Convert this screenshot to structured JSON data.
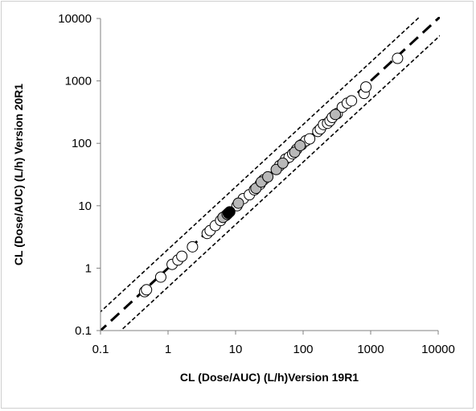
{
  "chart_data": {
    "type": "scatter",
    "title": "",
    "xlabel": "CL (Dose/AUC) (L/h)Version 19R1",
    "ylabel": "CL (Dose/AUC) (L/h) Version 20R1",
    "xscale": "log",
    "yscale": "log",
    "xlim": [
      0.1,
      10000
    ],
    "ylim": [
      0.1,
      10000
    ],
    "x_ticks": [
      "0.1",
      "1",
      "10",
      "100",
      "1000",
      "10000"
    ],
    "y_ticks": [
      "0.1",
      "1",
      "10",
      "100",
      "1000",
      "10000"
    ],
    "grid": false,
    "legend": "none",
    "reference_lines": [
      {
        "name": "",
        "description": "line of unity y = x",
        "style": "long-dash",
        "factor": 1
      },
      {
        "name": "",
        "description": "2-fold upper bound y = 2x",
        "style": "short-dash",
        "factor": 2
      },
      {
        "name": "",
        "description": "2-fold lower bound y = 0.5x",
        "style": "short-dash",
        "factor": 0.5
      }
    ],
    "series": [
      {
        "fill": "#ffffff",
        "points": [
          [
            0.45,
            0.42
          ],
          [
            0.48,
            0.45
          ],
          [
            0.78,
            0.72
          ],
          [
            1.15,
            1.15
          ],
          [
            1.4,
            1.35
          ],
          [
            1.6,
            1.55
          ],
          [
            2.3,
            2.2
          ],
          [
            3.8,
            3.6
          ],
          [
            4.2,
            4.0
          ],
          [
            5.0,
            4.8
          ],
          [
            6.0,
            5.8
          ],
          [
            7.2,
            7.0
          ],
          [
            10.5,
            10.0
          ],
          [
            13.0,
            13.0
          ],
          [
            16.0,
            15.0
          ],
          [
            19.0,
            18.0
          ],
          [
            23.0,
            22.0
          ],
          [
            26.0,
            26.0
          ],
          [
            45.0,
            44.0
          ],
          [
            55.0,
            56.0
          ],
          [
            62.0,
            60.0
          ],
          [
            70.0,
            68.0
          ],
          [
            80.0,
            80.0
          ],
          [
            95.0,
            95.0
          ],
          [
            110.0,
            110.0
          ],
          [
            125.0,
            118.0
          ],
          [
            165.0,
            155.0
          ],
          [
            180.0,
            170.0
          ],
          [
            200.0,
            200.0
          ],
          [
            230.0,
            210.0
          ],
          [
            250.0,
            230.0
          ],
          [
            270.0,
            260.0
          ],
          [
            320.0,
            300.0
          ],
          [
            380.0,
            380.0
          ],
          [
            450.0,
            440.0
          ],
          [
            520.0,
            480.0
          ],
          [
            800.0,
            630.0
          ],
          [
            850.0,
            800.0
          ],
          [
            2500.0,
            2300.0
          ]
        ]
      },
      {
        "fill": "#b8b8b8",
        "points": [
          [
            6.5,
            6.5
          ],
          [
            7.5,
            7.3
          ],
          [
            11.0,
            11.0
          ],
          [
            20.0,
            19.0
          ],
          [
            24.0,
            24.0
          ],
          [
            30.0,
            29.0
          ],
          [
            40.0,
            38.0
          ],
          [
            50.0,
            48.0
          ],
          [
            75.0,
            72.0
          ],
          [
            90.0,
            92.0
          ],
          [
            300.0,
            290.0
          ]
        ]
      },
      {
        "fill": "#000000",
        "points": [
          [
            7.8,
            7.6
          ],
          [
            8.2,
            8.0
          ]
        ]
      }
    ]
  }
}
